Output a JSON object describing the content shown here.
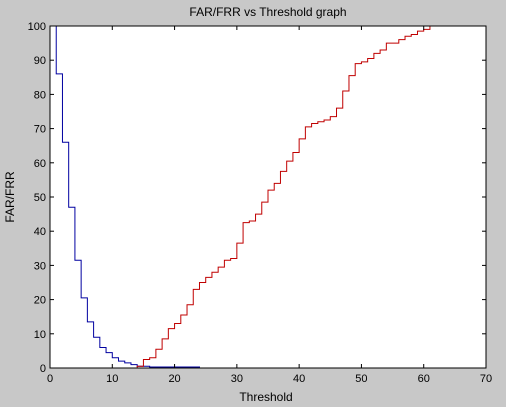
{
  "chart_data": {
    "type": "line",
    "title": "FAR/FRR vs Threshold graph",
    "xlabel": "Threshold",
    "ylabel": "FAR/FRR",
    "xlim": [
      0,
      70
    ],
    "ylim": [
      0,
      100
    ],
    "xticks": [
      0,
      10,
      20,
      30,
      40,
      50,
      60,
      70
    ],
    "yticks": [
      0,
      10,
      20,
      30,
      40,
      50,
      60,
      70,
      80,
      90,
      100
    ],
    "grid": false,
    "legend": "none",
    "step": true,
    "series": [
      {
        "color": "#0000a0",
        "x": [
          0,
          1,
          2,
          3,
          4,
          5,
          6,
          7,
          8,
          9,
          10,
          11,
          12,
          13,
          14,
          15,
          16,
          17,
          18,
          19,
          20,
          21,
          22,
          23,
          24,
          70
        ],
        "y": [
          100,
          86,
          66,
          47,
          31.5,
          20.5,
          13.5,
          9,
          6,
          4.5,
          3,
          2,
          1.5,
          1,
          0.5,
          0.5,
          0.3,
          0.3,
          0.3,
          0.3,
          0.3,
          0.3,
          0.3,
          0.3,
          0,
          0
        ]
      },
      {
        "color": "#c00000",
        "x": [
          0,
          13,
          14,
          15,
          16,
          17,
          18,
          19,
          20,
          21,
          22,
          23,
          24,
          25,
          26,
          27,
          28,
          29,
          30,
          31,
          32,
          33,
          34,
          35,
          36,
          37,
          38,
          39,
          40,
          41,
          42,
          43,
          44,
          45,
          46,
          47,
          48,
          49,
          50,
          51,
          52,
          53,
          54,
          55,
          56,
          57,
          58,
          59,
          60,
          61,
          62
        ],
        "y": [
          0,
          0,
          0.5,
          2.5,
          3,
          5.5,
          8.5,
          11.5,
          13,
          15.5,
          18.5,
          23,
          25,
          26.5,
          28,
          29.5,
          31.5,
          32,
          36.5,
          42.5,
          43,
          45,
          48.5,
          52,
          54,
          57.5,
          60.5,
          63,
          67,
          70.5,
          71.5,
          72,
          72.5,
          73.5,
          76,
          81,
          85.5,
          89,
          89.5,
          90.5,
          92,
          93,
          95,
          95,
          96,
          97,
          97.5,
          98.5,
          99,
          100,
          100
        ]
      }
    ]
  }
}
